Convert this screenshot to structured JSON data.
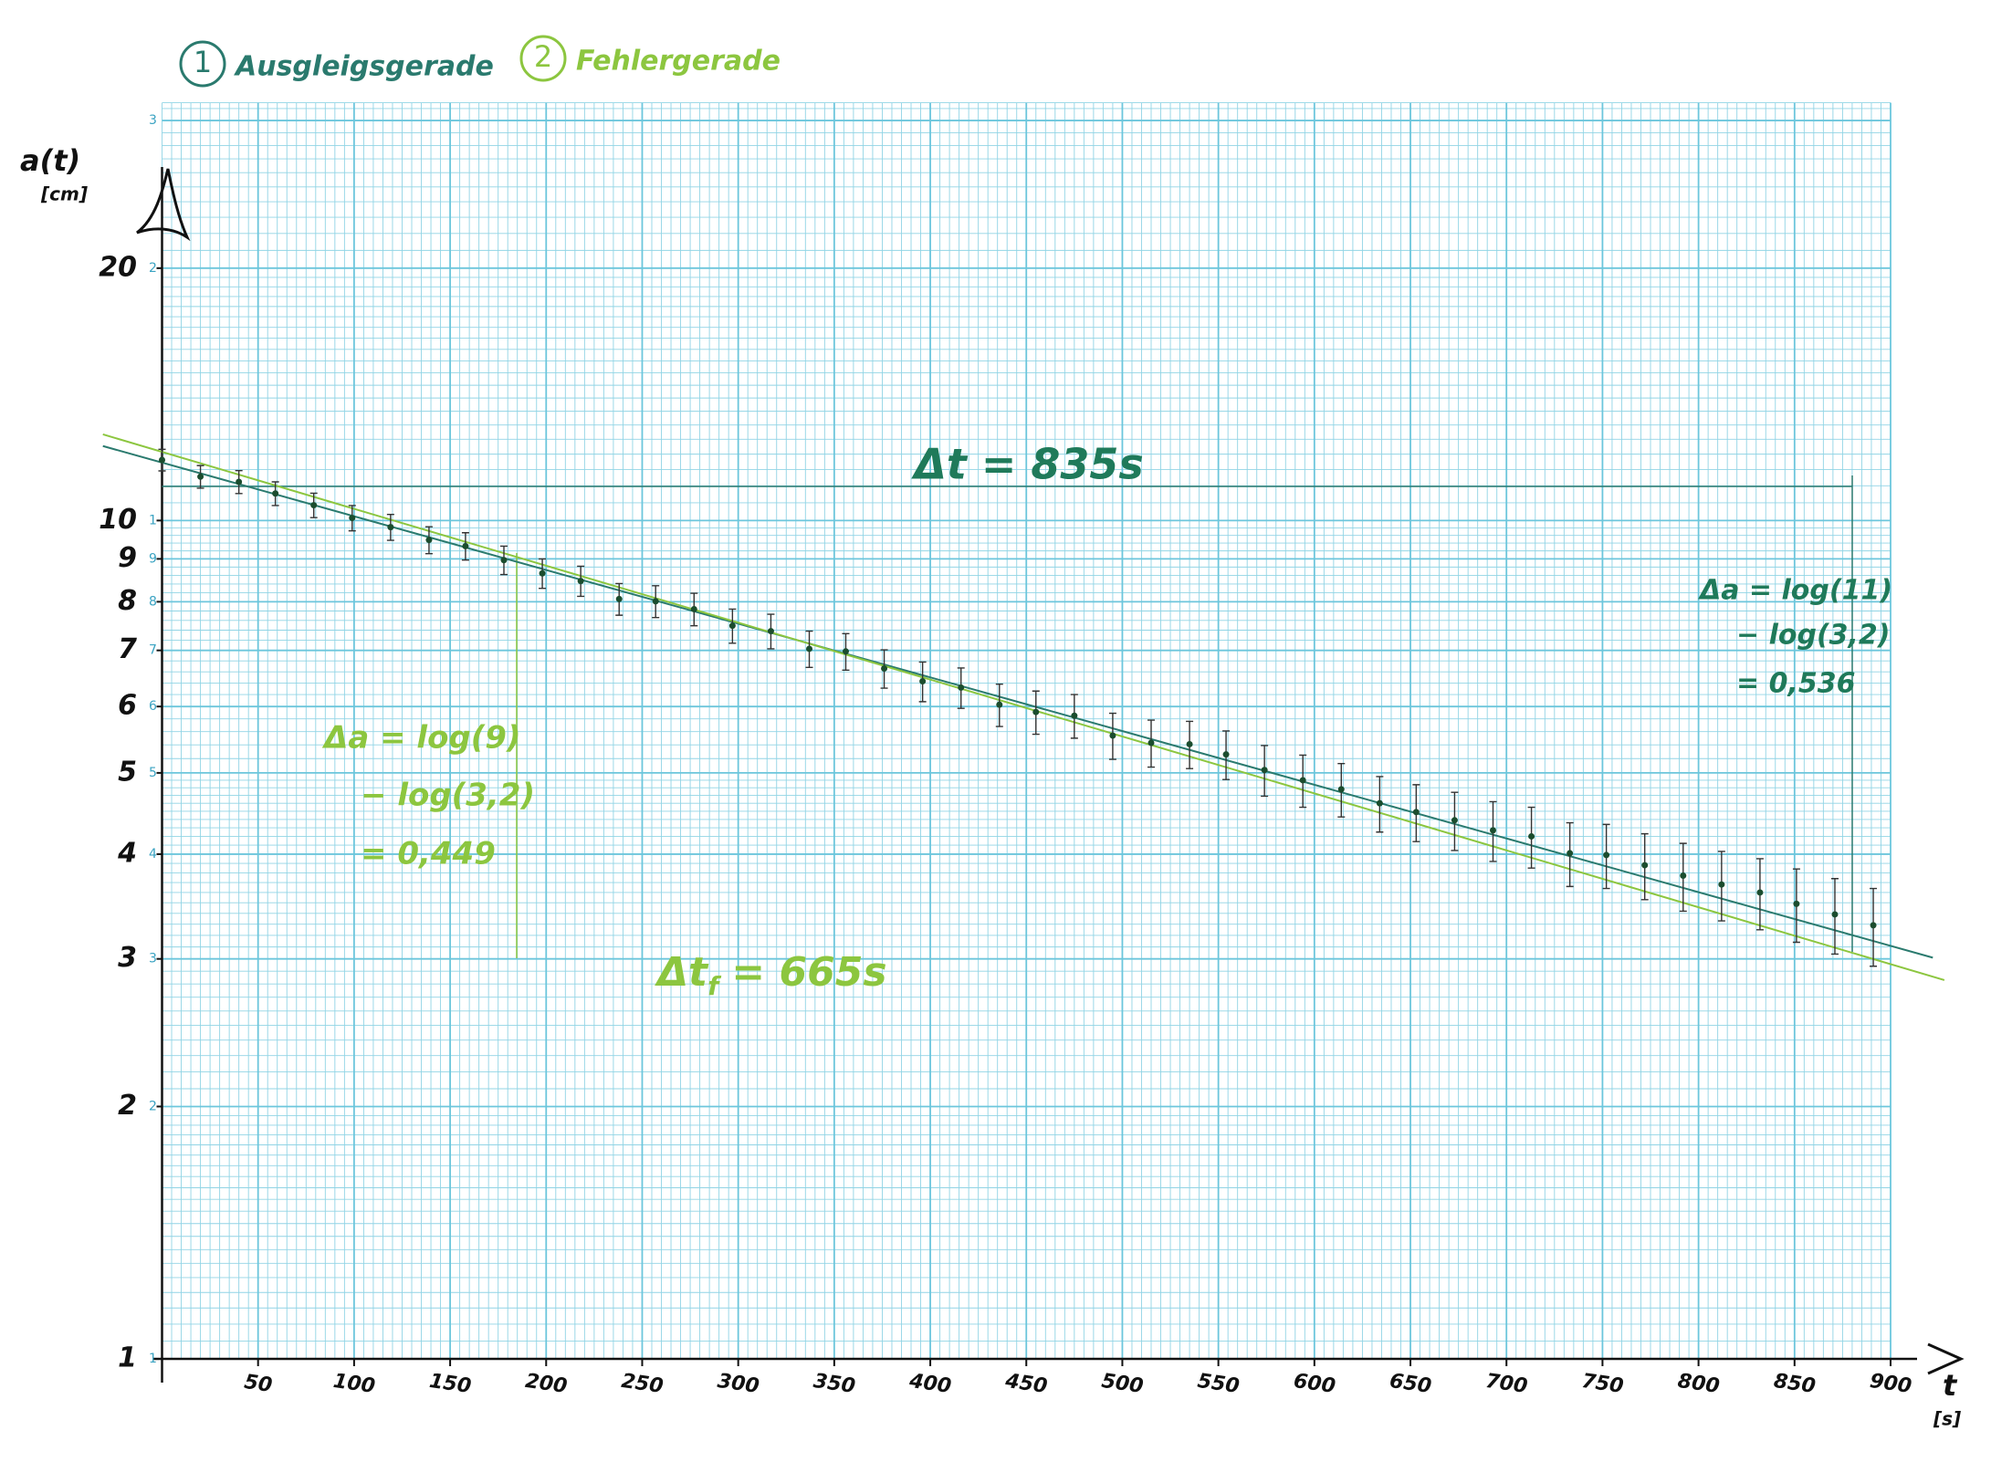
{
  "chart_data": {
    "type": "scatter",
    "log_y": true,
    "xlim": [
      0,
      900
    ],
    "ylim": [
      1,
      31.5
    ],
    "xticks": [
      50,
      100,
      150,
      200,
      250,
      300,
      350,
      400,
      450,
      500,
      550,
      600,
      650,
      700,
      750,
      800,
      850,
      900
    ],
    "yticks": [
      1,
      2,
      3,
      4,
      5,
      6,
      7,
      8,
      9,
      10,
      20
    ],
    "paper_yticks": [
      1,
      2,
      3,
      4,
      5,
      6,
      7,
      8,
      9,
      {
        "value": 10,
        "label": "1"
      },
      {
        "value": 20,
        "label": "2"
      },
      {
        "value": 30,
        "label": "3"
      }
    ],
    "xlabel": "t",
    "xunit": "[s]",
    "ylabel": "a(t)",
    "yunit": "[cm]",
    "grid": true,
    "grid_color": "#6cc6dc",
    "points": {
      "color": "#1b4d2e",
      "x": [
        0,
        20,
        40,
        59,
        79,
        99,
        119,
        139,
        158,
        178,
        198,
        218,
        238,
        257,
        277,
        297,
        317,
        337,
        356,
        376,
        396,
        416,
        436,
        455,
        475,
        495,
        515,
        535,
        554,
        574,
        594,
        614,
        634,
        653,
        673,
        693,
        713,
        733,
        752,
        772,
        792,
        812,
        832,
        851,
        871,
        891
      ],
      "values": [
        11.81,
        11.28,
        11.12,
        10.77,
        10.43,
        10.07,
        9.82,
        9.48,
        9.32,
        8.97,
        8.65,
        8.47,
        8.06,
        8.01,
        7.84,
        7.49,
        7.38,
        7.03,
        6.98,
        6.66,
        6.43,
        6.32,
        6.03,
        5.91,
        5.85,
        5.54,
        5.43,
        5.41,
        5.26,
        5.04,
        4.9,
        4.78,
        4.6,
        4.49,
        4.39,
        4.27,
        4.2,
        4.01,
        3.99,
        3.88,
        3.77,
        3.68,
        3.6,
        3.49,
        3.39,
        3.29
      ],
      "errors": [
        0.35,
        0.35,
        0.35,
        0.35,
        0.35,
        0.35,
        0.35,
        0.35,
        0.35,
        0.35,
        0.35,
        0.35,
        0.35,
        0.35,
        0.35,
        0.35,
        0.35,
        0.35,
        0.35,
        0.35,
        0.35,
        0.35,
        0.35,
        0.35,
        0.35,
        0.35,
        0.35,
        0.35,
        0.35,
        0.35,
        0.35,
        0.35,
        0.35,
        0.35,
        0.35,
        0.35,
        0.35,
        0.35,
        0.35,
        0.35,
        0.35,
        0.35,
        0.35,
        0.35,
        0.35,
        0.35
      ]
    },
    "series": [
      {
        "name": "Ausgleigsgerade",
        "number": "1",
        "color": "#2a7a6e",
        "x": [
          -30.8,
          922
        ],
        "values": [
          12.27,
          3.01
        ]
      },
      {
        "name": "Fehlergerade",
        "number": "2",
        "color": "#8cc63f",
        "x": [
          -30.8,
          928
        ],
        "values": [
          12.67,
          2.83
        ]
      }
    ],
    "annotations": [
      {
        "text": "Δt = 835s",
        "color": "#1f7a5a"
      },
      {
        "text": "Δt",
        "sub": "f",
        "rest": "= 665s",
        "color": "#8cc63f"
      },
      {
        "lines": [
          "Δa = log(11)",
          "− log(3,2)",
          "= 0,536"
        ],
        "color": "#1f7a5a"
      },
      {
        "lines": [
          "Δa = log(9)",
          "− log(3,2)",
          "= 0,449"
        ],
        "color": "#8cc63f"
      }
    ]
  }
}
